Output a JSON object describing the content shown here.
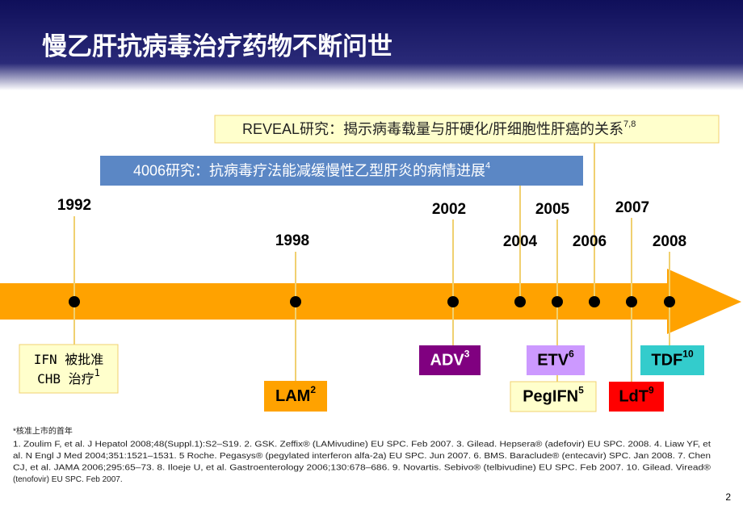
{
  "header": {
    "title": "慢乙肝抗病毒治疗药物不断问世"
  },
  "studies": [
    {
      "label": "REVEAL研究：揭示病毒载量与肝硬化/肝细胞性肝癌的关系",
      "ref": "7,8"
    },
    {
      "label": "4006研究：抗病毒疗法能减缓慢性乙型肝炎的病情进展",
      "ref": "4"
    }
  ],
  "timeline": {
    "years": [
      "1992",
      "1998",
      "2002",
      "2004",
      "2005",
      "2006",
      "2007",
      "2008"
    ],
    "drugs": [
      {
        "lines": [
          "IFN 被批准",
          "CHB 治疗"
        ],
        "ref": "1"
      },
      {
        "lines": [
          "LAM"
        ],
        "ref": "2"
      },
      {
        "lines": [
          "ADV"
        ],
        "ref": "3"
      },
      {
        "lines": [
          "ETV"
        ],
        "ref": "6"
      },
      {
        "lines": [
          "PegIFN"
        ],
        "ref": "5"
      },
      {
        "lines": [
          "LdT"
        ],
        "ref": "9"
      },
      {
        "lines": [
          "TDF"
        ],
        "ref": "10"
      }
    ]
  },
  "footnote": {
    "note": "*核准上市的首年",
    "references": [
      "1. Zoulim F, et al. J Hepatol 2008;48(Suppl.1):S2–S19. 2. GSK. Zeffix® (LAMivudine) EU SPC. Feb 2007. 3. Gilead. Hepsera® (adefovir) EU SPC. 2008. 4. Liaw YF, et",
      "al. N Engl J Med 2004;351:1521–1531. 5 Roche. Pegasys® (pegylated interferon alfa-2a) EU SPC. Jun 2007. 6. BMS. Baraclude® (entecavir) SPC. Jan 2008. 7. Chen",
      "CJ, et al. JAMA 2006;295:65–73. 8. Iloeje U, et al. Gastroenterology 2006;130:678–686. 9. Novartis. Sebivo® (telbivudine) EU SPC. Feb 2007. 10. Gilead. Viread®",
      "(tenofovir) EU SPC. Feb 2007."
    ]
  },
  "page_number": "2"
}
